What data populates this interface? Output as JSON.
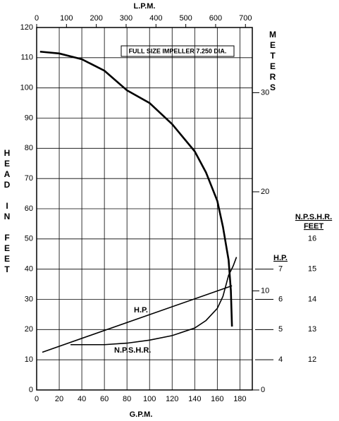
{
  "chart_data": {
    "type": "line",
    "annotation": "FULL SIZE IMPELLER 7.250 DIA.",
    "xlabel": "G.P.M.",
    "x2label": "L.P.M.",
    "ylabel": "HEAD IN FEET",
    "y2label": "METERS",
    "xlim": [
      0,
      191
    ],
    "xticks": [
      0,
      20,
      40,
      60,
      80,
      100,
      120,
      140,
      160,
      180
    ],
    "x2lim": [
      0,
      723
    ],
    "x2ticks": [
      0,
      100,
      200,
      300,
      400,
      500,
      600,
      700
    ],
    "ylim": [
      0,
      120
    ],
    "yticks": [
      0,
      10,
      20,
      30,
      40,
      50,
      60,
      70,
      80,
      90,
      100,
      110,
      120
    ],
    "y2lim": [
      0,
      36.58
    ],
    "y2ticks": [
      0,
      10,
      20,
      30
    ],
    "hp_axis": {
      "label": "H.P.",
      "lim": [
        3,
        15
      ],
      "ticks": [
        4,
        5,
        6,
        7
      ]
    },
    "npshr_axis": {
      "label": "N.P.S.H.R. FEET",
      "lim": [
        11,
        23
      ],
      "ticks": [
        12,
        13,
        14,
        15,
        16
      ]
    },
    "grid": true,
    "series": [
      {
        "color": "#000000",
        "axis": "y",
        "x": [
          3,
          20,
          40,
          60,
          80,
          100,
          120,
          140,
          150,
          160,
          165,
          170,
          172,
          173
        ],
        "values": [
          112,
          111.4,
          109.5,
          105.7,
          99.2,
          95,
          88,
          79,
          72,
          62.6,
          54,
          43,
          33,
          21
        ]
      },
      {
        "name": "H.P.",
        "color": "#000000",
        "axis": "hp",
        "x": [
          5,
          173
        ],
        "values": [
          4.25,
          6.45
        ]
      },
      {
        "name": "N.P.S.H.R.",
        "color": "#000000",
        "axis": "npshr",
        "x": [
          30,
          60,
          80,
          100,
          120,
          140,
          150,
          160,
          165,
          170,
          174,
          177
        ],
        "values": [
          12.5,
          12.5,
          12.55,
          12.65,
          12.8,
          13.05,
          13.3,
          13.7,
          14.1,
          14.8,
          15.1,
          15.4
        ]
      }
    ]
  }
}
